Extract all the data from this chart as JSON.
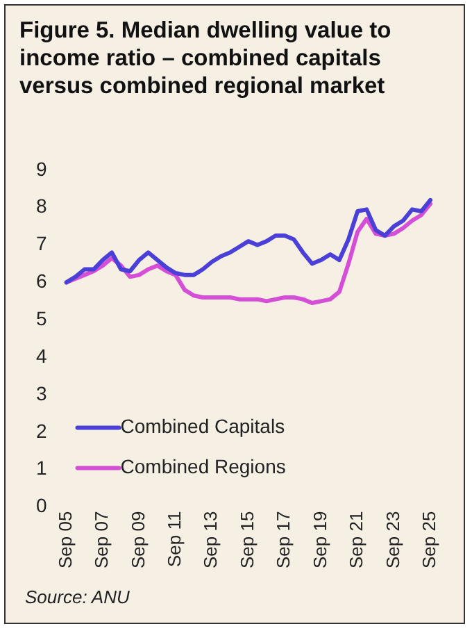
{
  "chart_data": {
    "type": "line",
    "title": "Figure 5. Median dwelling value to income ratio – combined capitals versus combined regional market",
    "categories": [
      "Sep 05",
      null,
      null,
      null,
      "Sep 07",
      null,
      null,
      null,
      "Sep 09",
      null,
      null,
      null,
      "Sep 11",
      null,
      null,
      null,
      "Sep 13",
      null,
      null,
      null,
      "Sep 15",
      null,
      null,
      null,
      "Sep 17",
      null,
      null,
      null,
      "Sep 19",
      null,
      null,
      null,
      "Sep 21",
      null,
      null,
      null,
      "Sep 23",
      null,
      null,
      null,
      "Sep 25"
    ],
    "series": [
      {
        "name": "Combined Capitals",
        "color": "#4a3fd6",
        "values": [
          6.0,
          6.15,
          6.35,
          6.35,
          6.6,
          6.8,
          6.35,
          6.3,
          6.6,
          6.8,
          6.6,
          6.4,
          6.25,
          6.2,
          6.2,
          6.35,
          6.55,
          6.7,
          6.8,
          6.95,
          7.1,
          7.0,
          7.1,
          7.25,
          7.25,
          7.15,
          6.8,
          6.5,
          6.6,
          6.75,
          6.6,
          7.15,
          7.9,
          7.95,
          7.4,
          7.25,
          7.5,
          7.65,
          7.95,
          7.9,
          8.2
        ]
      },
      {
        "name": "Combined Regions",
        "color": "#d54fd6",
        "values": [
          6.0,
          6.1,
          6.2,
          6.3,
          6.45,
          6.65,
          6.45,
          6.15,
          6.2,
          6.35,
          6.45,
          6.3,
          6.2,
          5.8,
          5.65,
          5.6,
          5.6,
          5.6,
          5.6,
          5.55,
          5.55,
          5.55,
          5.5,
          5.55,
          5.6,
          5.6,
          5.55,
          5.45,
          5.5,
          5.55,
          5.75,
          6.5,
          7.35,
          7.7,
          7.3,
          7.25,
          7.3,
          7.45,
          7.65,
          7.8,
          8.1
        ]
      }
    ],
    "ylim": [
      0,
      9
    ],
    "yticks": [
      0,
      1,
      2,
      3,
      4,
      5,
      6,
      7,
      8,
      9
    ],
    "legend": "bottom left",
    "grid": false,
    "marker": "none",
    "line_style": "solid",
    "annotations": [
      "Source: ANU"
    ]
  }
}
